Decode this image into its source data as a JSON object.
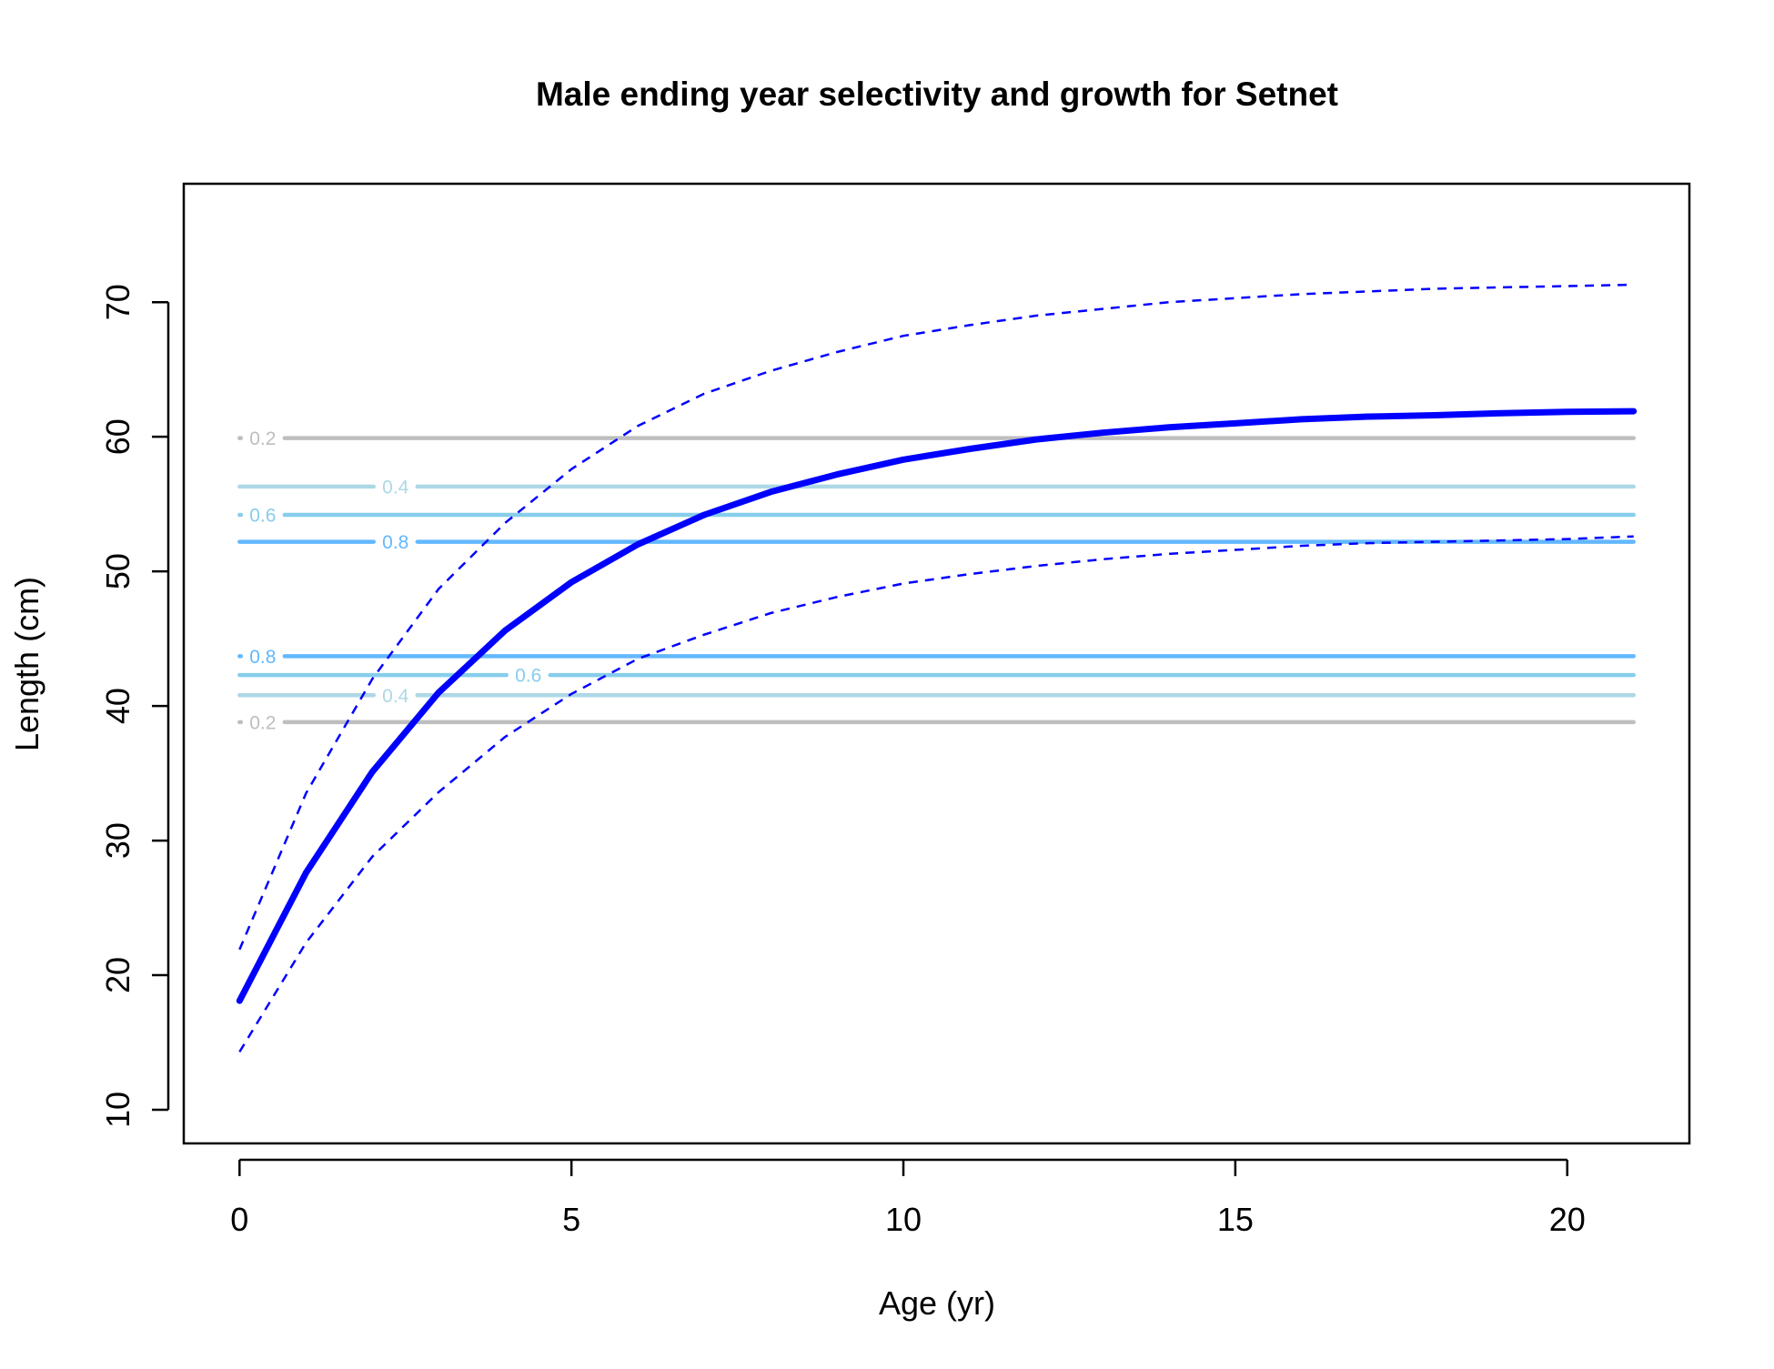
{
  "chart_data": {
    "type": "line",
    "title": "Male ending year selectivity and growth for Setnet",
    "xlabel": "Age (yr)",
    "ylabel": "Length (cm)",
    "xlim": [
      -0.84,
      21.84
    ],
    "ylim": [
      7.5,
      78.8
    ],
    "x_ticks": [
      0,
      5,
      10,
      15,
      20
    ],
    "y_ticks": [
      10,
      20,
      30,
      40,
      50,
      60,
      70
    ],
    "grid": false,
    "legend": "none",
    "series": [
      {
        "role": "mean",
        "style": "solid",
        "color": "#0000FF",
        "x": [
          0,
          1,
          2,
          3,
          4,
          5,
          6,
          7,
          8,
          9,
          10,
          11,
          12,
          13,
          14,
          15,
          16,
          17,
          18,
          19,
          20,
          21
        ],
        "y": [
          18.1,
          27.6,
          35.1,
          41.0,
          45.6,
          49.2,
          52.0,
          54.2,
          55.9,
          57.2,
          58.3,
          59.1,
          59.8,
          60.3,
          60.7,
          61.0,
          61.3,
          61.5,
          61.6,
          61.75,
          61.85,
          61.9
        ]
      },
      {
        "role": "upper",
        "style": "dashed",
        "color": "#0000FF",
        "x": [
          0,
          1,
          2,
          3,
          4,
          5,
          6,
          7,
          8,
          9,
          10,
          11,
          12,
          13,
          14,
          15,
          16,
          17,
          18,
          19,
          20,
          21
        ],
        "y": [
          21.9,
          33.5,
          42.0,
          48.7,
          53.6,
          57.6,
          60.8,
          63.2,
          64.9,
          66.3,
          67.5,
          68.3,
          69.0,
          69.5,
          70.0,
          70.3,
          70.6,
          70.8,
          71.0,
          71.1,
          71.2,
          71.3
        ]
      },
      {
        "role": "lower",
        "style": "dashed",
        "color": "#0000FF",
        "x": [
          0,
          1,
          2,
          3,
          4,
          5,
          6,
          7,
          8,
          9,
          10,
          11,
          12,
          13,
          14,
          15,
          16,
          17,
          18,
          19,
          20,
          21
        ],
        "y": [
          14.3,
          22.4,
          28.8,
          33.6,
          37.7,
          40.9,
          43.5,
          45.3,
          46.9,
          48.1,
          49.1,
          49.8,
          50.4,
          50.9,
          51.3,
          51.6,
          51.9,
          52.1,
          52.2,
          52.3,
          52.4,
          52.6
        ]
      }
    ],
    "selectivity_contours": [
      {
        "level": "0.2",
        "y": 59.9,
        "label_x": 0.35,
        "color": "#BEBEBE"
      },
      {
        "level": "0.4",
        "y": 56.3,
        "label_x": 2.35,
        "color": "#ADD8E6"
      },
      {
        "level": "0.6",
        "y": 54.2,
        "label_x": 0.35,
        "color": "#87CEEB"
      },
      {
        "level": "0.8",
        "y": 52.2,
        "label_x": 2.35,
        "color": "#63B8FF"
      },
      {
        "level": "0.8",
        "y": 43.7,
        "label_x": 0.35,
        "color": "#63B8FF"
      },
      {
        "level": "0.6",
        "y": 42.3,
        "label_x": 4.35,
        "color": "#87CEEB"
      },
      {
        "level": "0.4",
        "y": 40.8,
        "label_x": 2.35,
        "color": "#ADD8E6"
      },
      {
        "level": "0.2",
        "y": 38.8,
        "label_x": 0.35,
        "color": "#BEBEBE"
      }
    ],
    "contour_x_range": [
      0,
      21
    ]
  }
}
